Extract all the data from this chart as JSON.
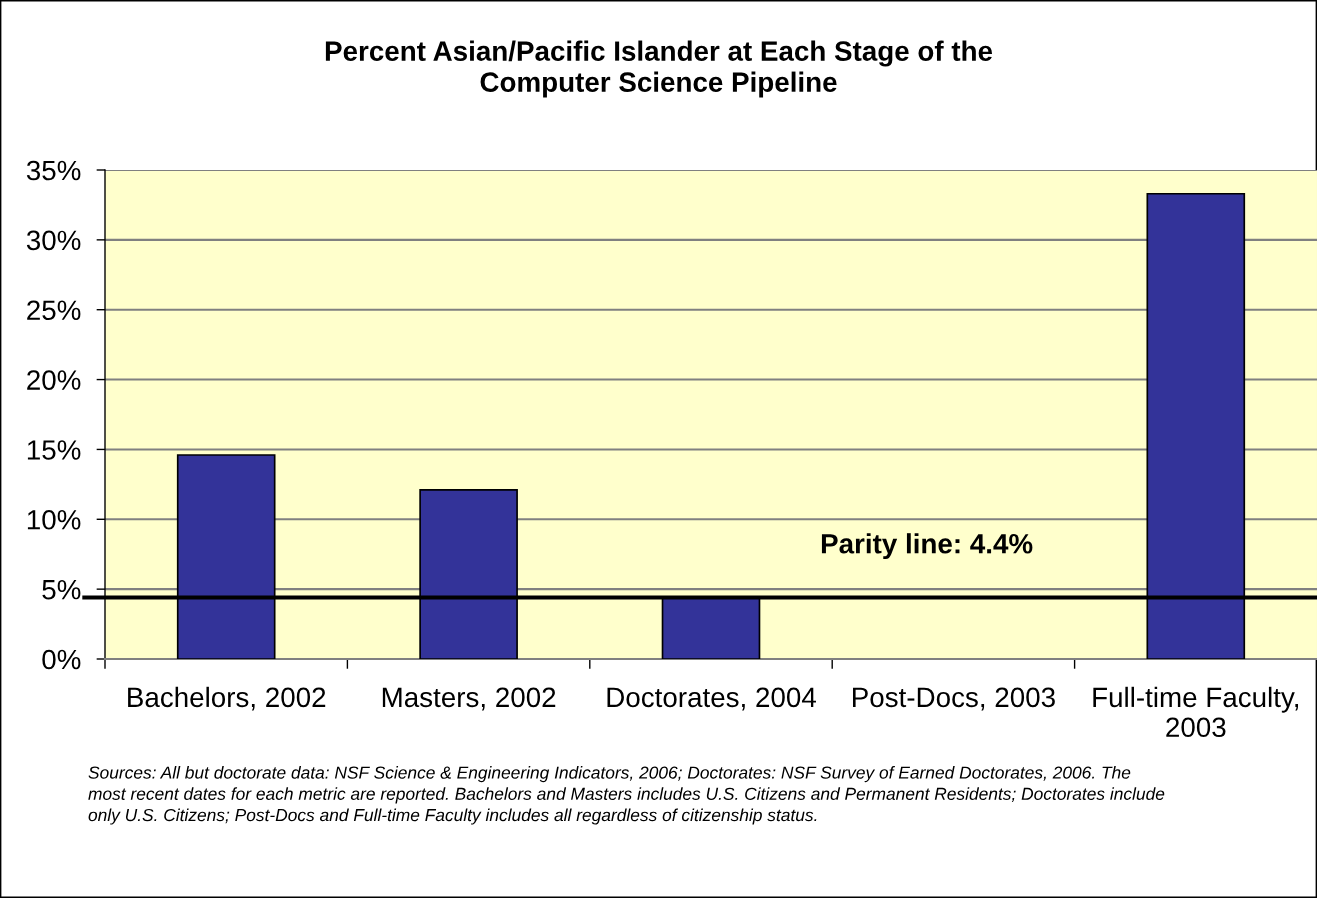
{
  "chart_data": {
    "type": "bar",
    "title": "Percent Asian/Pacific Islander at Each Stage of the\nComputer Science Pipeline",
    "categories": [
      "Bachelors, 2002",
      "Masters, 2002",
      "Doctorates, 2004",
      "Post-Docs, 2003",
      "Full-time Faculty,\n2003"
    ],
    "values": [
      14.6,
      12.1,
      4.4,
      null,
      33.3
    ],
    "color": "#333399",
    "ylim": [
      0,
      35
    ],
    "yticks": [
      {
        "value": 0,
        "label": "0%"
      },
      {
        "value": 5,
        "label": "5%"
      },
      {
        "value": 10,
        "label": "10%"
      },
      {
        "value": 15,
        "label": "15%"
      },
      {
        "value": 20,
        "label": "20%"
      },
      {
        "value": 25,
        "label": "25%"
      },
      {
        "value": 30,
        "label": "30%"
      },
      {
        "value": 35,
        "label": "35%"
      }
    ],
    "grid": "y",
    "ref_lines": [
      {
        "axis": "y",
        "value": 4.4,
        "label": "Parity line: 4.4%",
        "color": "#000000"
      }
    ],
    "annotations": [
      "Sources: All but doctorate data: NSF Science & Engineering Indicators, 2006; Doctorates: NSF Survey of Earned Doctorates, 2006. The\nmost recent dates for each metric are reported. Bachelors and Masters includes U.S. Citizens and Permanent Residents; Doctorates include\nonly U.S. Citizens; Post-Docs and Full-time Faculty includes all regardless of citizenship status."
    ]
  }
}
